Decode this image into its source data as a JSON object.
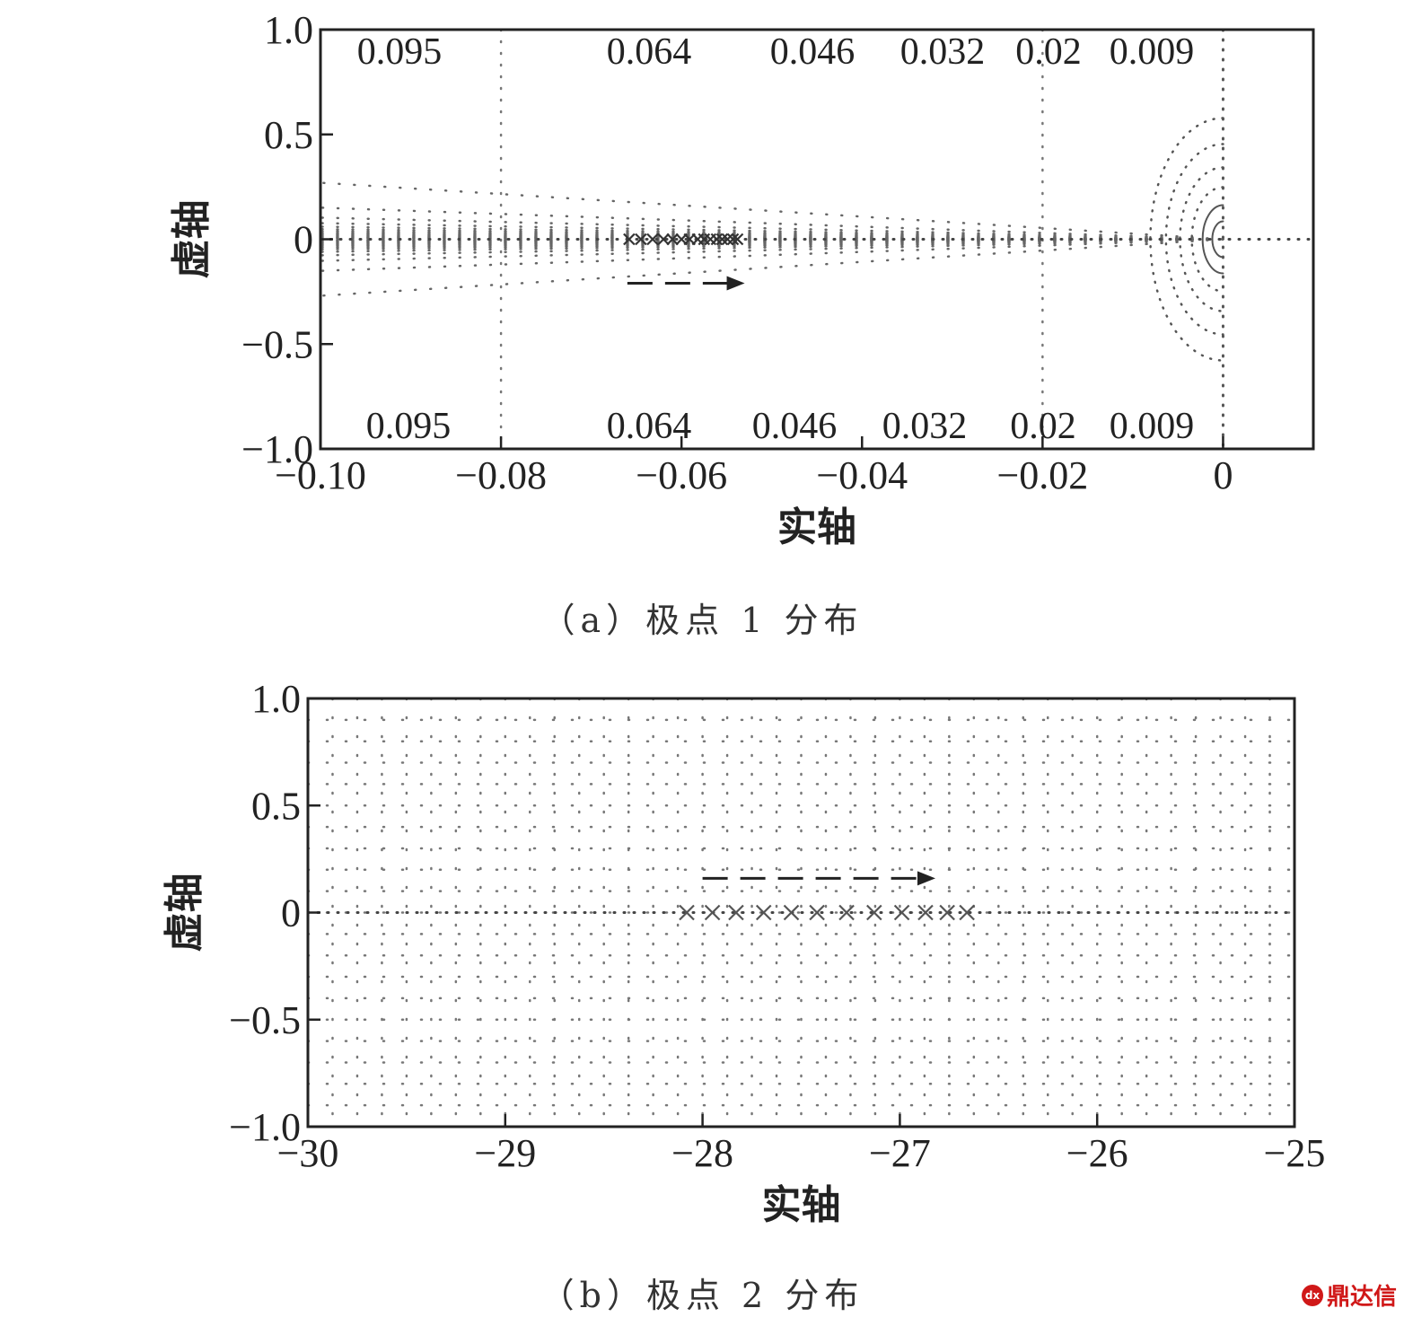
{
  "chart_data": [
    {
      "type": "scatter",
      "caption": "（a）极点 1 分布",
      "xlabel": "实轴",
      "ylabel": "虚轴",
      "xlim": [
        -0.1,
        0.01
      ],
      "ylim": [
        -1.0,
        1.0
      ],
      "xticks": [
        -0.1,
        -0.08,
        -0.06,
        -0.04,
        -0.02,
        0
      ],
      "xtick_labels": [
        "−0.10",
        "−0.08",
        "−0.06",
        "−0.04",
        "−0.02",
        "0"
      ],
      "yticks": [
        1.0,
        0.5,
        0,
        -0.5,
        -1.0
      ],
      "ytick_labels": [
        "1.0",
        "0.5",
        "0",
        "−0.5",
        "−1.0"
      ],
      "grid": "sgrid",
      "damping_labels_top": [
        "0.095",
        "0.064",
        "0.046",
        "0.032",
        "0.02",
        "0.009"
      ],
      "damping_labels_bottom": [
        "0.095",
        "0.064",
        "0.046",
        "0.032",
        "0.02",
        "0.009"
      ],
      "series": [
        {
          "marker": "x",
          "x": [
            -0.0658,
            -0.0645,
            -0.0632,
            -0.062,
            -0.061,
            -0.06,
            -0.0591,
            -0.0582,
            -0.0575,
            -0.0568,
            -0.0561,
            -0.0555,
            -0.0549,
            -0.0543,
            -0.0538
          ],
          "y": [
            0,
            0,
            0,
            0,
            0,
            0,
            0,
            0,
            0,
            0,
            0,
            0,
            0,
            0,
            0
          ]
        }
      ],
      "arrow": {
        "from": [
          -0.066,
          -0.21
        ],
        "to": [
          -0.053,
          -0.21
        ],
        "style": "dashed"
      }
    },
    {
      "type": "scatter",
      "caption": "（b）极点 2 分布",
      "xlabel": "实轴",
      "ylabel": "虚轴",
      "xlim": [
        -30,
        -25
      ],
      "ylim": [
        -1.0,
        1.0
      ],
      "xticks": [
        -30,
        -29,
        -28,
        -27,
        -26,
        -25
      ],
      "xtick_labels": [
        "−30",
        "−29",
        "−28",
        "−27",
        "−26",
        "−25"
      ],
      "yticks": [
        1.0,
        0.5,
        0,
        -0.5,
        -1.0
      ],
      "ytick_labels": [
        "1.0",
        "0.5",
        "0",
        "−0.5",
        "−1.0"
      ],
      "grid": "dotted",
      "series": [
        {
          "marker": "x",
          "x": [
            -28.08,
            -27.95,
            -27.83,
            -27.69,
            -27.55,
            -27.42,
            -27.27,
            -27.13,
            -26.99,
            -26.87,
            -26.76,
            -26.66
          ],
          "y": [
            0,
            0,
            0,
            0,
            0,
            0,
            0,
            0,
            0,
            0,
            0,
            0
          ]
        }
      ],
      "arrow": {
        "from": [
          -28.0,
          0.16
        ],
        "to": [
          -26.82,
          0.16
        ],
        "style": "dashed"
      }
    }
  ],
  "watermark": {
    "text": "鼎达信",
    "color": "#d01818"
  }
}
